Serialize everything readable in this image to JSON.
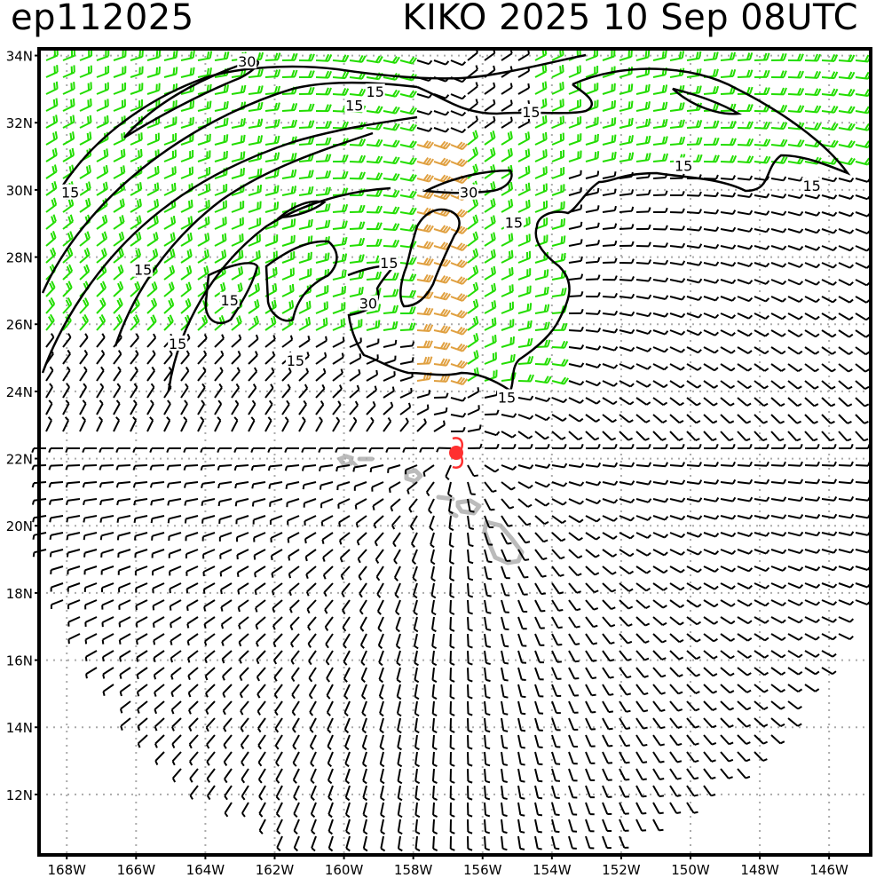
{
  "header": {
    "storm_id": "ep112025",
    "storm_name": "KIKO",
    "year": "2025",
    "date": "10 Sep",
    "time": "08UTC",
    "info_line": "KIKO  2025  10 Sep  08UTC"
  },
  "map": {
    "lat_labels": [
      "34N",
      "32N",
      "30N",
      "28N",
      "26N",
      "24N",
      "22N",
      "20N",
      "18N",
      "16N",
      "14N",
      "12N"
    ],
    "lon_labels": [
      "168W",
      "166W",
      "164W",
      "162W",
      "160W",
      "158W",
      "156W",
      "154W",
      "152W",
      "150W",
      "148W",
      "146W"
    ],
    "storm_center": {
      "lat": 22.3,
      "lon": -156.7
    },
    "colors": {
      "barb_calm": "#000000",
      "barb_15_30kt": "#22dd00",
      "barb_over_30kt": "#e0a040",
      "storm_marker": "#ff3030",
      "land": "#bbbbbb",
      "grid": "#aaaaaa"
    },
    "contour_labels": [
      {
        "text": "30",
        "lon": -162.8,
        "lat": 33.8
      },
      {
        "text": "15",
        "lon": -159.1,
        "lat": 32.9
      },
      {
        "text": "15",
        "lon": -159.7,
        "lat": 32.5
      },
      {
        "text": "15",
        "lon": -154.6,
        "lat": 32.3
      },
      {
        "text": "15",
        "lon": -150.2,
        "lat": 30.7
      },
      {
        "text": "15",
        "lon": -146.5,
        "lat": 30.1
      },
      {
        "text": "30",
        "lon": -156.4,
        "lat": 29.9
      },
      {
        "text": "15",
        "lon": -155.1,
        "lat": 29.0
      },
      {
        "text": "15",
        "lon": -167.9,
        "lat": 29.9
      },
      {
        "text": "15",
        "lon": -165.8,
        "lat": 27.6
      },
      {
        "text": "15",
        "lon": -158.7,
        "lat": 27.8
      },
      {
        "text": "30",
        "lon": -159.3,
        "lat": 26.6
      },
      {
        "text": "15",
        "lon": -163.3,
        "lat": 26.7
      },
      {
        "text": "15",
        "lon": -164.8,
        "lat": 25.4
      },
      {
        "text": "15",
        "lon": -161.4,
        "lat": 24.9
      },
      {
        "text": "15",
        "lon": -155.3,
        "lat": 23.8
      }
    ]
  }
}
